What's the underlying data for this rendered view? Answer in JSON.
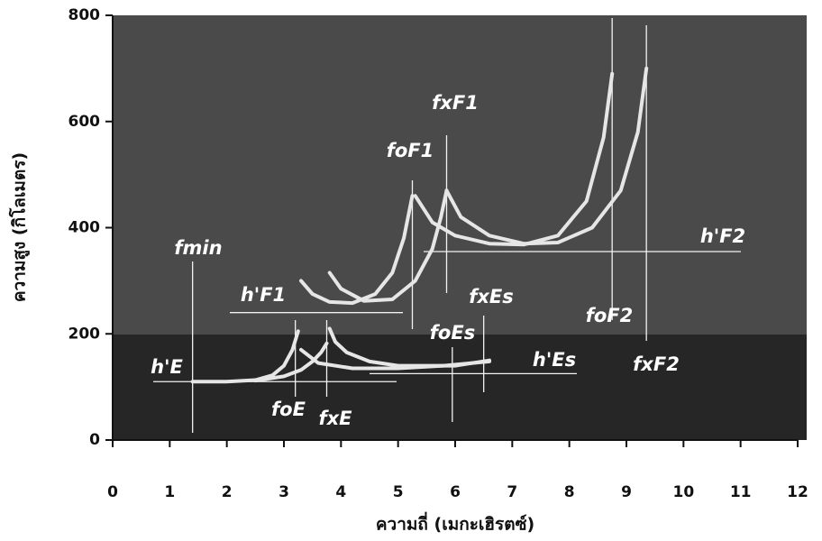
{
  "chart_data": {
    "type": "ionogram",
    "x_label": "ความถี่ (เมกะเฮิรตซ์)",
    "y_label": "ความสูง (กิโลเมตร)",
    "xlim": [
      0,
      12
    ],
    "xticks": [
      0,
      1,
      2,
      3,
      4,
      5,
      6,
      7,
      8,
      9,
      10,
      11,
      12
    ],
    "ylim": [
      0,
      800
    ],
    "yticks": [
      0,
      200,
      400,
      600,
      800
    ],
    "series": [
      {
        "color": "#e6e6e6",
        "x": [
          1.4,
          2.0,
          2.5,
          2.8,
          3.0,
          3.15,
          3.25
        ],
        "values": [
          110,
          110,
          113,
          122,
          140,
          170,
          205
        ]
      },
      {
        "color": "#e6e6e6",
        "x": [
          2.5,
          3.0,
          3.3,
          3.5,
          3.65,
          3.75
        ],
        "values": [
          112,
          120,
          132,
          148,
          165,
          182
        ]
      },
      {
        "color": "#e6e6e6",
        "x": [
          3.3,
          3.6,
          4.2,
          5.0,
          5.8,
          6.6
        ],
        "values": [
          170,
          145,
          135,
          135,
          140,
          148
        ]
      },
      {
        "color": "#e6e6e6",
        "x": [
          3.8,
          3.9,
          4.1,
          4.5,
          5.0,
          6.0,
          6.6
        ],
        "values": [
          210,
          185,
          165,
          148,
          140,
          140,
          150
        ]
      },
      {
        "color": "#e6e6e6",
        "x": [
          3.3,
          3.5,
          3.8,
          4.2,
          4.6,
          4.9,
          5.1,
          5.25
        ],
        "values": [
          300,
          275,
          260,
          258,
          275,
          315,
          380,
          460
        ]
      },
      {
        "color": "#e6e6e6",
        "x": [
          3.8,
          4.0,
          4.4,
          4.9,
          5.3,
          5.6,
          5.75,
          5.85
        ],
        "values": [
          315,
          285,
          262,
          265,
          300,
          360,
          420,
          470
        ]
      },
      {
        "color": "#e6e6e6",
        "x": [
          5.3,
          5.6,
          6.0,
          6.6,
          7.2,
          7.8,
          8.3,
          8.6,
          8.75
        ],
        "values": [
          460,
          410,
          385,
          370,
          368,
          385,
          450,
          570,
          690
        ]
      },
      {
        "color": "#e6e6e6",
        "x": [
          5.85,
          6.1,
          6.6,
          7.2,
          7.8,
          8.4,
          8.9,
          9.2,
          9.35
        ],
        "values": [
          470,
          420,
          385,
          370,
          372,
          400,
          470,
          580,
          700
        ]
      }
    ],
    "annotations": [
      {
        "label": "fmin",
        "x": 1.4
      },
      {
        "label": "h'E",
        "y": 110
      },
      {
        "label": "foE",
        "x": 3.2
      },
      {
        "label": "fxE",
        "x": 3.75
      },
      {
        "label": "h'F1",
        "y": 240
      },
      {
        "label": "foF1",
        "x": 5.25
      },
      {
        "label": "fxF1",
        "x": 5.85
      },
      {
        "label": "h'F2",
        "y": 355
      },
      {
        "label": "foF2",
        "x": 8.75
      },
      {
        "label": "fxF2",
        "x": 9.35
      },
      {
        "label": "foEs",
        "x": 5.95
      },
      {
        "label": "fxEs",
        "x": 6.5
      },
      {
        "label": "h'Es",
        "y": 125
      }
    ]
  }
}
